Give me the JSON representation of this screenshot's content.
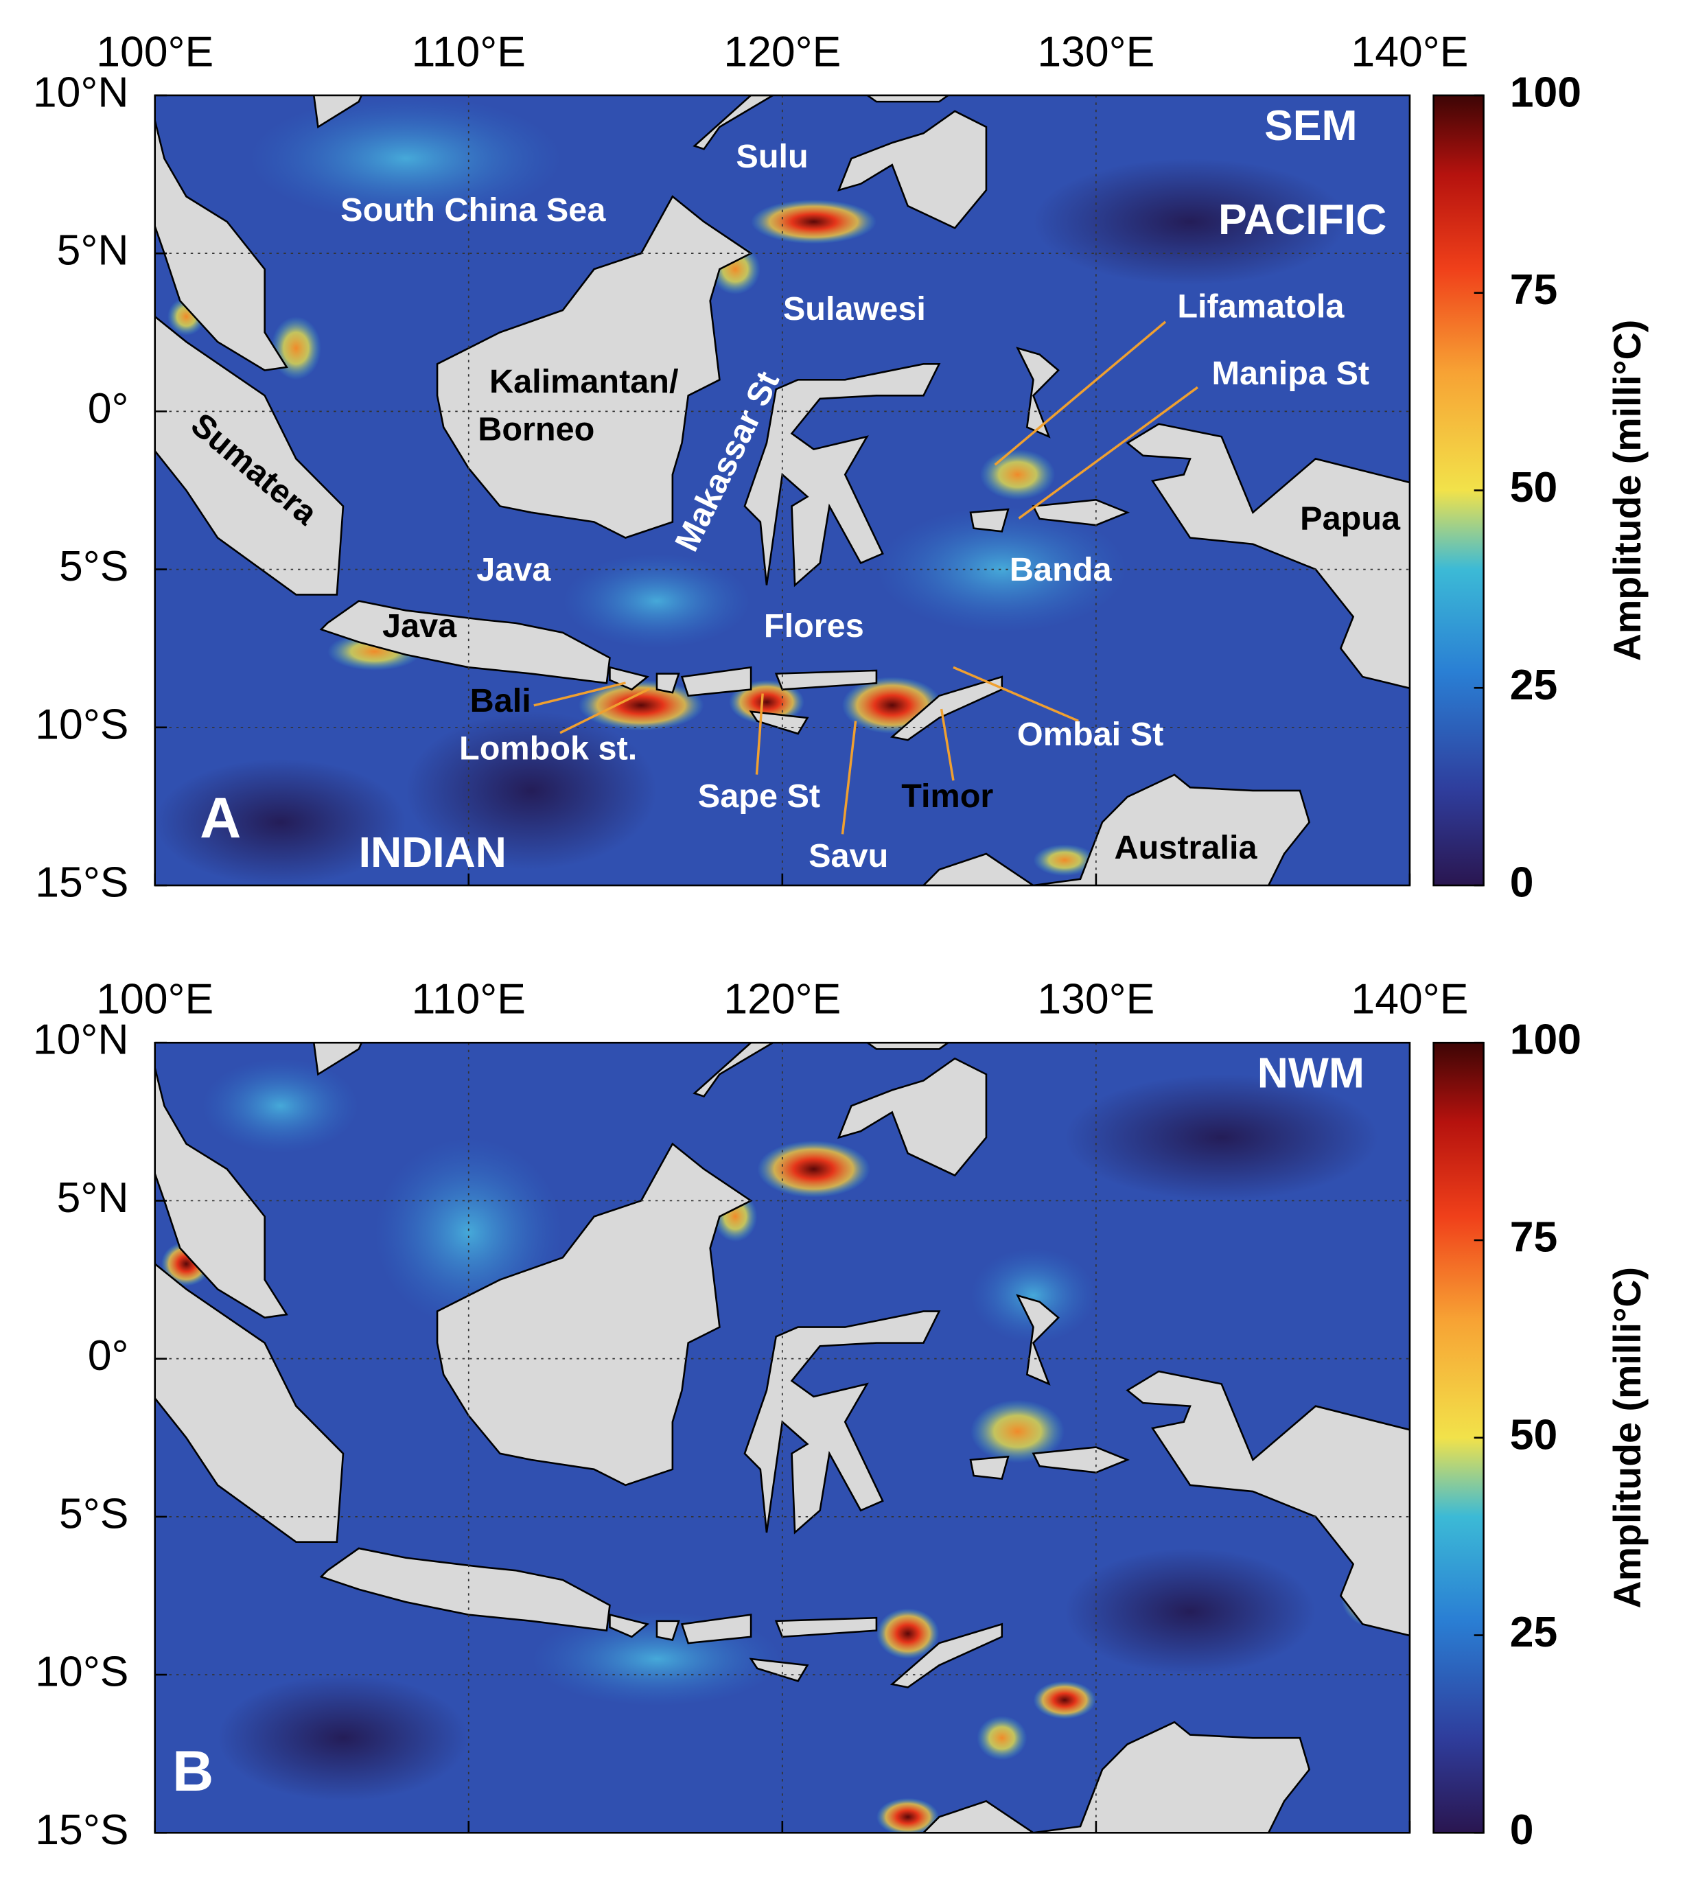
{
  "panels": [
    {
      "panel_label": "A",
      "mode_label": "SEM",
      "xlim": [
        100,
        140
      ],
      "ylim": [
        -15,
        10
      ],
      "xticks": [
        {
          "value": 100,
          "label": "100°E"
        },
        {
          "value": 110,
          "label": "110°E"
        },
        {
          "value": 120,
          "label": "120°E"
        },
        {
          "value": 130,
          "label": "130°E"
        },
        {
          "value": 140,
          "label": "140°E"
        }
      ],
      "yticks": [
        {
          "value": 10,
          "label": "10°N"
        },
        {
          "value": 5,
          "label": "5°N"
        },
        {
          "value": 0,
          "label": "0°"
        },
        {
          "value": -5,
          "label": "5°S"
        },
        {
          "value": -10,
          "label": "10°S"
        },
        {
          "value": -15,
          "label": "15°S"
        }
      ],
      "colorbar": {
        "label": "Amplitude (milli°C)",
        "clim": [
          0,
          100
        ],
        "ticks": [
          0,
          25,
          50,
          75,
          100
        ]
      },
      "labels": [
        "PACIFIC",
        "South China Sea",
        "Sulu",
        "Sulawesi",
        "Lifamatola",
        "Manipa St",
        "Kalimantan/",
        "Borneo",
        "Makassar St",
        "Sumatera",
        "Papua",
        "Java",
        "Banda",
        "Java",
        "Flores",
        "Bali",
        "Lombok st.",
        "Ombai St",
        "Sape St",
        "Timor",
        "Savu",
        "INDIAN",
        "Australia"
      ]
    },
    {
      "panel_label": "B",
      "mode_label": "NWM",
      "xlim": [
        100,
        140
      ],
      "ylim": [
        -15,
        10
      ],
      "xticks": [
        {
          "value": 100,
          "label": "100°E"
        },
        {
          "value": 110,
          "label": "110°E"
        },
        {
          "value": 120,
          "label": "120°E"
        },
        {
          "value": 130,
          "label": "130°E"
        },
        {
          "value": 140,
          "label": "140°E"
        }
      ],
      "yticks": [
        {
          "value": 10,
          "label": "10°N"
        },
        {
          "value": 5,
          "label": "5°N"
        },
        {
          "value": 0,
          "label": "0°"
        },
        {
          "value": -5,
          "label": "5°S"
        },
        {
          "value": -10,
          "label": "10°S"
        },
        {
          "value": -15,
          "label": "15°S"
        }
      ],
      "colorbar": {
        "label": "Amplitude (milli°C)",
        "clim": [
          0,
          100
        ],
        "ticks": [
          0,
          25,
          50,
          75,
          100
        ]
      },
      "labels": []
    }
  ]
}
